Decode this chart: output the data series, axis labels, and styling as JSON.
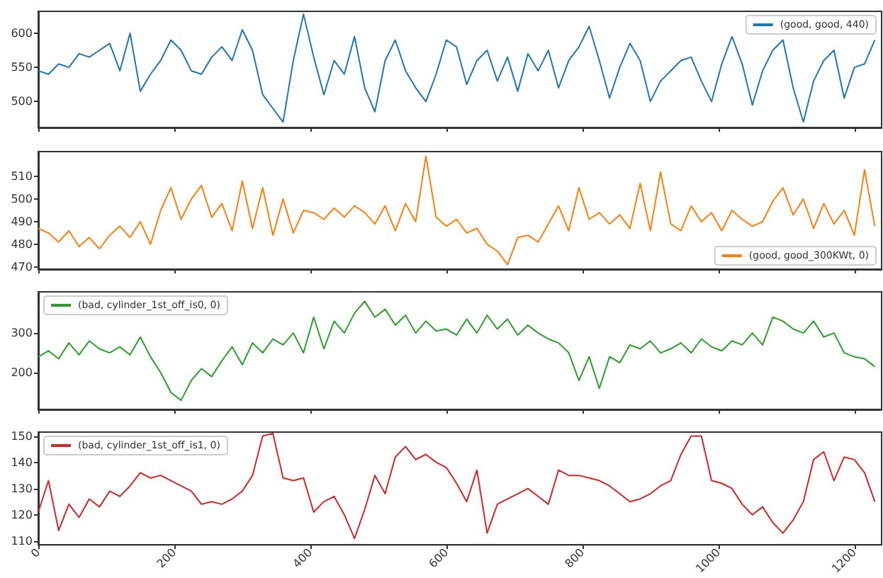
{
  "chart_data": [
    {
      "type": "line",
      "x": [
        0,
        15,
        30,
        45,
        60,
        75,
        90,
        105,
        120,
        135,
        150,
        165,
        180,
        195,
        210,
        225,
        240,
        255,
        270,
        285,
        300,
        315,
        330,
        345,
        360,
        375,
        390,
        405,
        420,
        435,
        450,
        465,
        480,
        495,
        510,
        525,
        540,
        555,
        570,
        585,
        600,
        615,
        630,
        645,
        660,
        675,
        690,
        705,
        720,
        735,
        750,
        765,
        780,
        795,
        810,
        825,
        840,
        855,
        870,
        885,
        900,
        915,
        930,
        945,
        960,
        975,
        990,
        1005,
        1020,
        1035,
        1050,
        1065,
        1080,
        1095,
        1110,
        1125,
        1140,
        1155,
        1170,
        1185,
        1200,
        1215,
        1230
      ],
      "series": [
        {
          "name": "(good, good, 440)",
          "color": "#1f77b4",
          "values": [
            545,
            540,
            555,
            550,
            570,
            565,
            575,
            585,
            545,
            600,
            515,
            540,
            560,
            590,
            575,
            545,
            540,
            565,
            580,
            560,
            605,
            575,
            510,
            490,
            470,
            560,
            628,
            565,
            510,
            560,
            540,
            595,
            520,
            485,
            560,
            590,
            545,
            520,
            500,
            540,
            590,
            580,
            525,
            560,
            575,
            530,
            565,
            515,
            570,
            545,
            575,
            520,
            560,
            580,
            610,
            560,
            505,
            550,
            585,
            560,
            500,
            530,
            545,
            560,
            565,
            530,
            500,
            555,
            595,
            555,
            495,
            545,
            575,
            590,
            520,
            470,
            530,
            560,
            575,
            505,
            550,
            555,
            590
          ]
        }
      ],
      "xlim": [
        0,
        1240
      ],
      "xticks": [
        0,
        200,
        400,
        600,
        800,
        1000,
        1200
      ],
      "ylim": [
        462,
        632
      ],
      "yticks": [
        500,
        550,
        600
      ],
      "legend": "top right",
      "tick_labels": "y"
    },
    {
      "type": "line",
      "x": [
        0,
        15,
        30,
        45,
        60,
        75,
        90,
        105,
        120,
        135,
        150,
        165,
        180,
        195,
        210,
        225,
        240,
        255,
        270,
        285,
        300,
        315,
        330,
        345,
        360,
        375,
        390,
        405,
        420,
        435,
        450,
        465,
        480,
        495,
        510,
        525,
        540,
        555,
        570,
        585,
        600,
        615,
        630,
        645,
        660,
        675,
        690,
        705,
        720,
        735,
        750,
        765,
        780,
        795,
        810,
        825,
        840,
        855,
        870,
        885,
        900,
        915,
        930,
        945,
        960,
        975,
        990,
        1005,
        1020,
        1035,
        1050,
        1065,
        1080,
        1095,
        1110,
        1125,
        1140,
        1155,
        1170,
        1185,
        1200,
        1215,
        1230
      ],
      "series": [
        {
          "name": "(good, good_300KWt, 0)",
          "color": "#ff7f0e",
          "values": [
            487,
            485,
            481,
            486,
            479,
            483,
            478,
            484,
            488,
            483,
            490,
            480,
            495,
            505,
            491,
            500,
            506,
            492,
            498,
            486,
            508,
            487,
            505,
            484,
            500,
            485,
            495,
            494,
            491,
            496,
            492,
            497,
            494,
            489,
            497,
            486,
            498,
            490,
            519,
            492,
            488,
            491,
            485,
            487,
            480,
            477,
            471,
            483,
            484,
            481,
            489,
            497,
            486,
            505,
            491,
            494,
            489,
            493,
            487,
            507,
            486,
            512,
            489,
            486,
            497,
            490,
            494,
            486,
            495,
            491,
            488,
            490,
            499,
            505,
            493,
            500,
            487,
            498,
            489,
            495,
            484,
            513,
            488
          ]
        }
      ],
      "xlim": [
        0,
        1240
      ],
      "xticks": [
        0,
        200,
        400,
        600,
        800,
        1000,
        1200
      ],
      "ylim": [
        469,
        521
      ],
      "yticks": [
        470,
        480,
        490,
        500,
        510
      ],
      "legend": "bottom right",
      "tick_labels": "y"
    },
    {
      "type": "line",
      "x": [
        0,
        15,
        30,
        45,
        60,
        75,
        90,
        105,
        120,
        135,
        150,
        165,
        180,
        195,
        210,
        225,
        240,
        255,
        270,
        285,
        300,
        315,
        330,
        345,
        360,
        375,
        390,
        405,
        420,
        435,
        450,
        465,
        480,
        495,
        510,
        525,
        540,
        555,
        570,
        585,
        600,
        615,
        630,
        645,
        660,
        675,
        690,
        705,
        720,
        735,
        750,
        765,
        780,
        795,
        810,
        825,
        840,
        855,
        870,
        885,
        900,
        915,
        930,
        945,
        960,
        975,
        990,
        1005,
        1020,
        1035,
        1050,
        1065,
        1080,
        1095,
        1110,
        1125,
        1140,
        1155,
        1170,
        1185,
        1200,
        1215,
        1230
      ],
      "series": [
        {
          "name": "(bad, cylinder_1st_off_is0, 0)",
          "color": "#2ca02c",
          "values": [
            240,
            255,
            235,
            275,
            245,
            280,
            260,
            250,
            265,
            245,
            290,
            240,
            200,
            150,
            130,
            180,
            210,
            190,
            230,
            265,
            220,
            275,
            250,
            285,
            270,
            300,
            250,
            340,
            260,
            330,
            300,
            350,
            380,
            340,
            360,
            320,
            345,
            300,
            330,
            305,
            310,
            295,
            335,
            300,
            345,
            310,
            335,
            295,
            320,
            300,
            285,
            275,
            250,
            180,
            240,
            160,
            240,
            225,
            270,
            260,
            280,
            250,
            260,
            275,
            250,
            285,
            265,
            255,
            280,
            270,
            300,
            270,
            340,
            330,
            310,
            300,
            330,
            290,
            300,
            250,
            240,
            235,
            215
          ]
        }
      ],
      "xlim": [
        0,
        1240
      ],
      "xticks": [
        0,
        200,
        400,
        600,
        800,
        1000,
        1200
      ],
      "ylim": [
        107,
        404
      ],
      "yticks": [
        200,
        300
      ],
      "legend": "top left",
      "tick_labels": "y"
    },
    {
      "type": "line",
      "x": [
        0,
        15,
        30,
        45,
        60,
        75,
        90,
        105,
        120,
        135,
        150,
        165,
        180,
        195,
        210,
        225,
        240,
        255,
        270,
        285,
        300,
        315,
        330,
        345,
        360,
        375,
        390,
        405,
        420,
        435,
        450,
        465,
        480,
        495,
        510,
        525,
        540,
        555,
        570,
        585,
        600,
        615,
        630,
        645,
        660,
        675,
        690,
        705,
        720,
        735,
        750,
        765,
        780,
        795,
        810,
        825,
        840,
        855,
        870,
        885,
        900,
        915,
        930,
        945,
        960,
        975,
        990,
        1005,
        1020,
        1035,
        1050,
        1065,
        1080,
        1095,
        1110,
        1125,
        1140,
        1155,
        1170,
        1185,
        1200,
        1215,
        1230
      ],
      "series": [
        {
          "name": "(bad, cylinder_1st_off_is1, 0)",
          "color": "#d62728",
          "values": [
            121,
            133,
            114,
            124,
            119,
            126,
            123,
            129,
            127,
            131,
            136,
            134,
            135,
            133,
            131,
            129,
            124,
            125,
            124,
            126,
            129,
            135,
            150,
            151,
            134,
            133,
            134,
            121,
            125,
            127,
            120,
            111,
            122,
            135,
            128,
            142,
            146,
            141,
            143,
            140,
            138,
            132,
            125,
            137,
            113,
            124,
            126,
            128,
            130,
            127,
            124,
            137,
            135,
            135,
            134,
            133,
            131,
            128,
            125,
            126,
            128,
            131,
            133,
            143,
            150,
            150,
            133,
            132,
            130,
            124,
            120,
            123,
            117,
            113,
            118,
            125,
            141,
            144,
            133,
            142,
            141,
            136,
            125
          ]
        }
      ],
      "xlim": [
        0,
        1240
      ],
      "xticks": [
        0,
        200,
        400,
        600,
        800,
        1000,
        1200
      ],
      "ylim": [
        108.5,
        151.5
      ],
      "yticks": [
        110,
        120,
        130,
        140,
        150
      ],
      "legend": "top left"
    }
  ]
}
